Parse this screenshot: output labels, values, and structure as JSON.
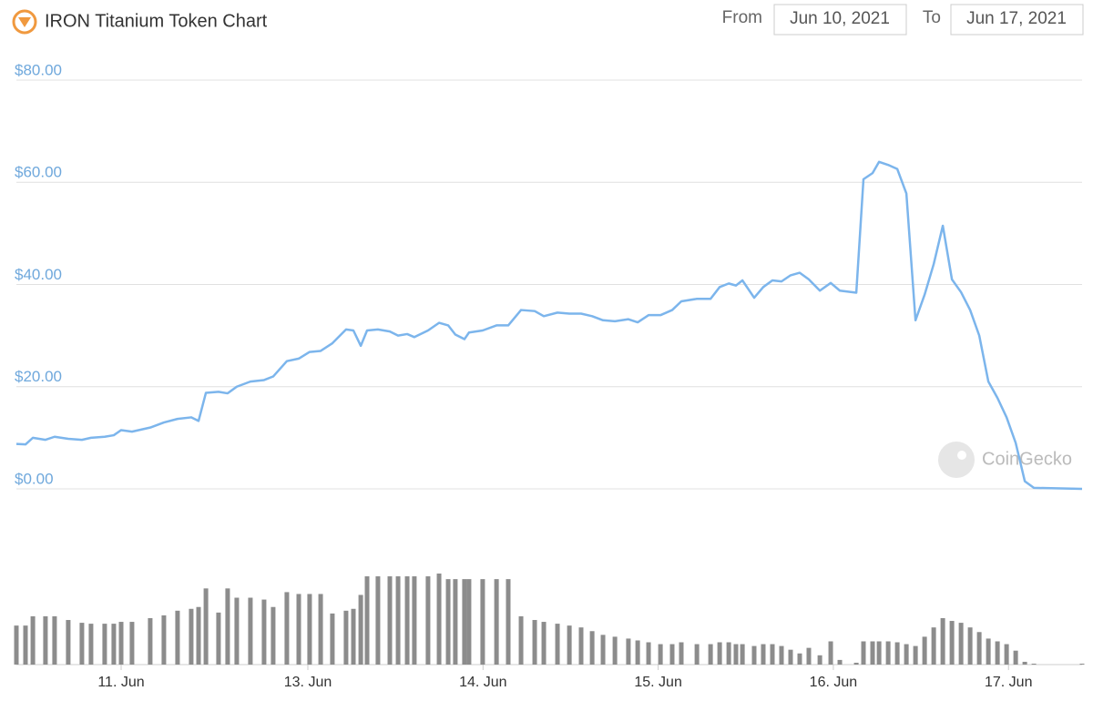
{
  "chart_data": {
    "type": "line",
    "title": "IRON Titanium Token Chart",
    "from_label": "From",
    "from_date": "Jun 10, 2021",
    "to_label": "To",
    "to_date": "Jun 17, 2021",
    "watermark": "CoinGecko",
    "color": "#7cb5ec",
    "x": [
      1.336,
      1.388,
      1.43,
      1.502,
      1.554,
      1.632,
      1.71,
      1.762,
      1.84,
      1.892,
      1.934,
      1.996,
      2.1,
      2.178,
      2.256,
      2.334,
      2.376,
      2.418,
      2.49,
      2.542,
      2.594,
      2.672,
      2.75,
      2.802,
      2.88,
      2.948,
      3.01,
      3.073,
      3.14,
      3.218,
      3.26,
      3.302,
      3.338,
      3.4,
      3.468,
      3.515,
      3.567,
      3.608,
      3.686,
      3.749,
      3.801,
      3.842,
      3.894,
      3.92,
      3.998,
      4.077,
      4.144,
      4.217,
      4.295,
      4.347,
      4.425,
      4.493,
      4.56,
      4.623,
      4.685,
      4.753,
      4.83,
      4.883,
      4.945,
      5.013,
      5.08,
      5.132,
      5.221,
      5.299,
      5.351,
      5.403,
      5.444,
      5.481,
      5.548,
      5.6,
      5.652,
      5.704,
      5.756,
      5.808,
      5.86,
      5.923,
      5.985,
      6.037,
      6.131,
      6.172,
      6.224,
      6.261,
      6.313,
      6.365,
      6.417,
      6.469,
      6.521,
      6.573,
      6.625,
      6.677,
      6.729,
      6.781,
      6.833,
      6.885,
      6.937,
      6.989,
      7.041,
      7.093,
      7.145,
      7.42
    ],
    "values": [
      8.8,
      8.7,
      10,
      9.6,
      10.2,
      9.8,
      9.6,
      10,
      10.2,
      10.5,
      11.5,
      11.2,
      12,
      13,
      13.7,
      14,
      13.3,
      18.8,
      19,
      18.7,
      20,
      21,
      21.3,
      22,
      25,
      25.5,
      26.8,
      27,
      28.5,
      31.2,
      31,
      28,
      31,
      31.2,
      30.8,
      30,
      30.3,
      29.7,
      31,
      32.5,
      32,
      30.2,
      29.3,
      30.6,
      31,
      32,
      32,
      35,
      34.8,
      33.8,
      34.5,
      34.3,
      34.3,
      33.8,
      33,
      32.8,
      33.2,
      32.6,
      34,
      34,
      35,
      36.7,
      37.2,
      37.2,
      39.5,
      40.2,
      39.8,
      40.8,
      37.4,
      39.5,
      40.8,
      40.6,
      41.8,
      42.3,
      41,
      38.8,
      40.3,
      38.8,
      38.4,
      60.6,
      61.8,
      64,
      63.4,
      62.6,
      57.8,
      33,
      38,
      44,
      51.5,
      41,
      38.5,
      35,
      30,
      21,
      17.8,
      14,
      9,
      1.5,
      0.2,
      0
    ],
    "volume": {
      "color": "#8c8c8c",
      "values": [
        42,
        42,
        52,
        52,
        52,
        48,
        45,
        44,
        44,
        44,
        46,
        46,
        50,
        53,
        58,
        60,
        62,
        82,
        56,
        82,
        72,
        72,
        70,
        62,
        78,
        76,
        76,
        76,
        55,
        58,
        60,
        75,
        95,
        95,
        95,
        95,
        95,
        95,
        95,
        98,
        92,
        92,
        92,
        92,
        92,
        92,
        92,
        52,
        48,
        46,
        44,
        42,
        40,
        36,
        32,
        30,
        28,
        26,
        24,
        22,
        22,
        24,
        22,
        22,
        24,
        24,
        22,
        22,
        20,
        22,
        22,
        20,
        16,
        12,
        18,
        10,
        25,
        5,
        2,
        25,
        25,
        25,
        25,
        24,
        22,
        20,
        30,
        40,
        50,
        47,
        45,
        40,
        35,
        28,
        25,
        22,
        15,
        3,
        1,
        1
      ]
    },
    "xlim": [
      1.336,
      7.42
    ],
    "xticks": [
      {
        "value": 1.934,
        "label": "11. Jun"
      },
      {
        "value": 3,
        "label": "13. Jun"
      },
      {
        "value": 4,
        "label": "14. Jun"
      },
      {
        "value": 5,
        "label": "15. Jun"
      },
      {
        "value": 6,
        "label": "16. Jun"
      },
      {
        "value": 7,
        "label": "17. Jun"
      }
    ],
    "ylim": [
      0,
      80
    ],
    "yticks": [
      {
        "value": 0,
        "label": "$0.00"
      },
      {
        "value": 20,
        "label": "$20.00"
      },
      {
        "value": 40,
        "label": "$40.00"
      },
      {
        "value": 60,
        "label": "$60.00"
      },
      {
        "value": 80,
        "label": "$80.00"
      }
    ],
    "grid": true
  }
}
